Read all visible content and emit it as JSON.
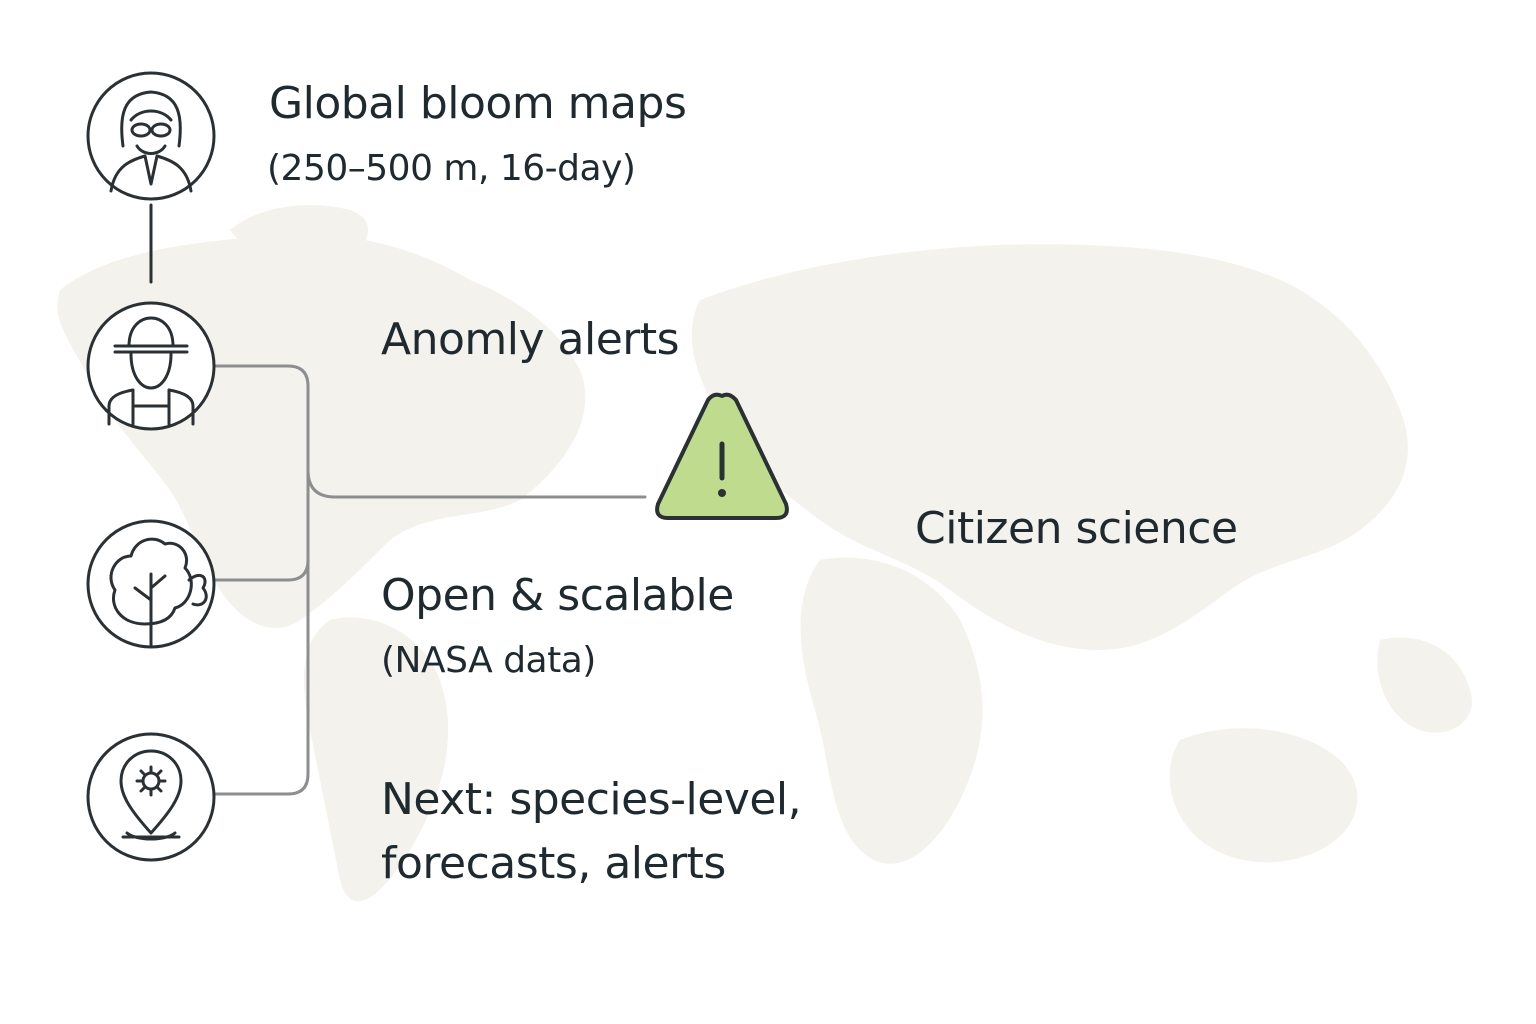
{
  "labels": {
    "bloom_maps_title": "Global bloom maps",
    "bloom_maps_detail": "(250–500 m, 16-day)",
    "anomaly_alerts": "Anomly alerts",
    "citizen_science": "Citizen science",
    "open_scalable_title": "Open & scalable",
    "open_scalable_detail": "(NASA data)",
    "next_line1": "Next: species-level,",
    "next_line2": "forecasts, alerts"
  },
  "icons": {
    "researcher": "researcher-icon",
    "farmer": "farmer-icon",
    "tree": "tree-icon",
    "location": "location-pin-icon",
    "warning": "warning-icon"
  },
  "colors": {
    "stroke": "#2a3034",
    "connector": "#8c8e8f",
    "warning_fill": "#bfdc8e",
    "map": "#f1f0e9"
  }
}
